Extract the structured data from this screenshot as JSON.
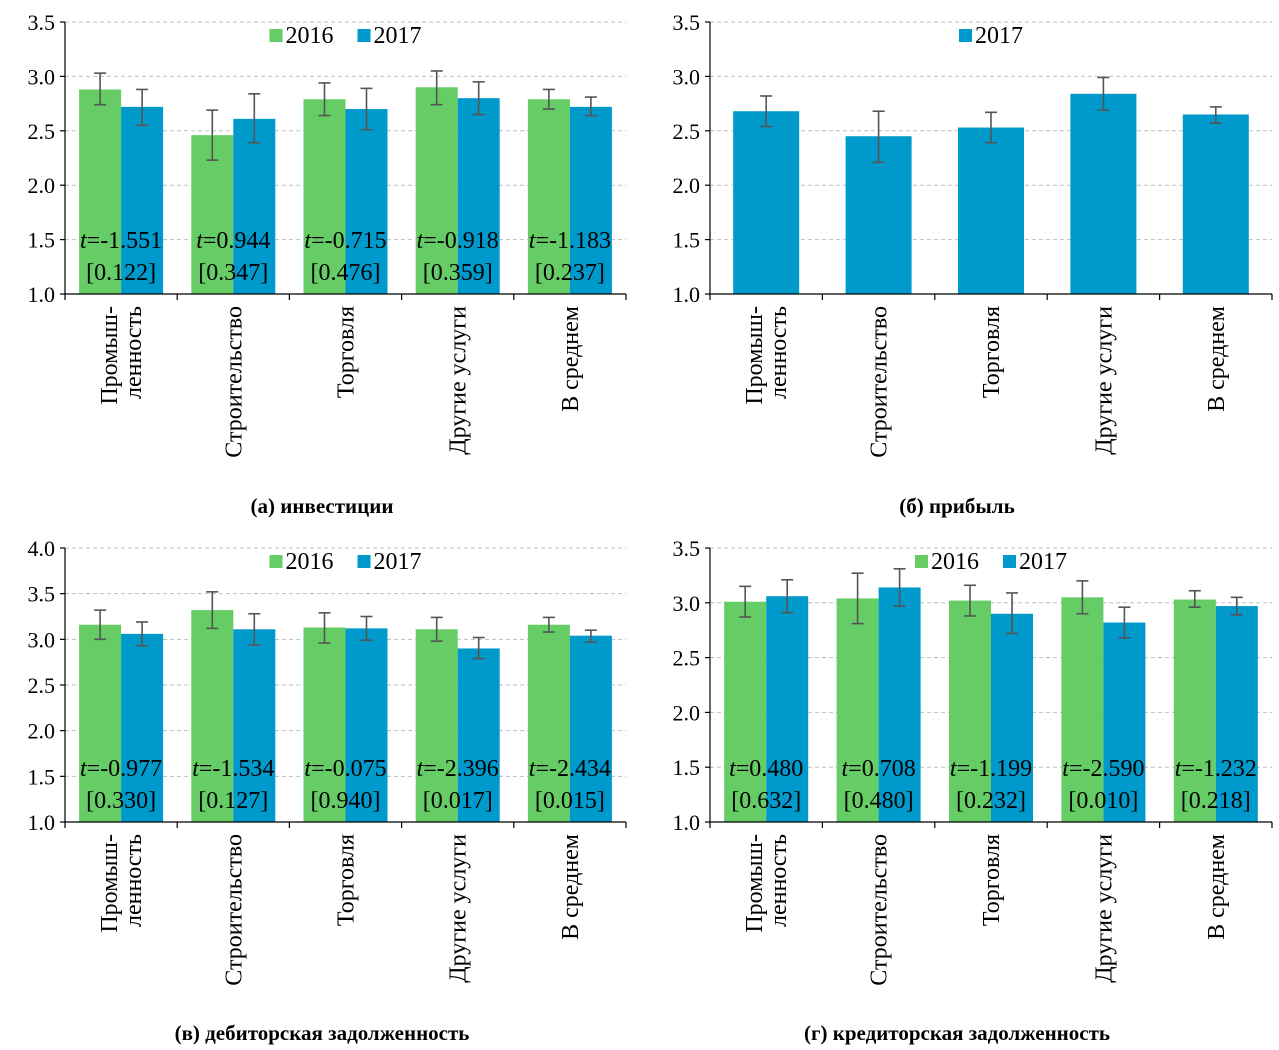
{
  "colors": {
    "s2016": "#66cc66",
    "s2017": "#0099cc",
    "error": "#555555",
    "grid": "#bfbfbf",
    "axis": "#000000"
  },
  "chart_data": [
    {
      "type": "bar",
      "caption": "(а) инвестиции",
      "categories": [
        [
          "Промыш-",
          "ленность"
        ],
        [
          "Строительство"
        ],
        [
          "Торговля"
        ],
        [
          "Другие услуги"
        ],
        [
          "В среднем"
        ]
      ],
      "ylim": [
        1.0,
        3.5
      ],
      "yticks": [
        1.0,
        1.5,
        2.0,
        2.5,
        3.0,
        3.5
      ],
      "grid": true,
      "legend": "top-center",
      "series": [
        {
          "name": "2016",
          "color": "s2016",
          "values": [
            2.88,
            2.46,
            2.79,
            2.9,
            2.79
          ],
          "err_low": [
            2.74,
            2.23,
            2.64,
            2.74,
            2.7
          ],
          "err_high": [
            3.03,
            2.69,
            2.94,
            3.05,
            2.88
          ]
        },
        {
          "name": "2017",
          "color": "s2017",
          "values": [
            2.72,
            2.61,
            2.7,
            2.8,
            2.72
          ],
          "err_low": [
            2.55,
            2.39,
            2.51,
            2.65,
            2.64
          ],
          "err_high": [
            2.88,
            2.84,
            2.89,
            2.95,
            2.81
          ]
        }
      ],
      "annotations": [
        {
          "t": "=-1.551",
          "p": "[0.122]"
        },
        {
          "t": "=0.944",
          "p": "[0.347]"
        },
        {
          "t": "=-0.715",
          "p": "[0.476]"
        },
        {
          "t": "=-0.918",
          "p": "[0.359]"
        },
        {
          "t": "=-1.183",
          "p": "[0.237]"
        }
      ]
    },
    {
      "type": "bar",
      "caption": "(б) прибыль",
      "categories": [
        [
          "Промыш-",
          "ленность"
        ],
        [
          "Строительство"
        ],
        [
          "Торговля"
        ],
        [
          "Другие услуги"
        ],
        [
          "В среднем"
        ]
      ],
      "ylim": [
        1.0,
        3.5
      ],
      "yticks": [
        1.0,
        1.5,
        2.0,
        2.5,
        3.0,
        3.5
      ],
      "grid": true,
      "legend": "top-center",
      "series": [
        {
          "name": "2017",
          "color": "s2017",
          "values": [
            2.68,
            2.45,
            2.53,
            2.84,
            2.65
          ],
          "err_low": [
            2.54,
            2.21,
            2.39,
            2.69,
            2.57
          ],
          "err_high": [
            2.82,
            2.68,
            2.67,
            2.99,
            2.72
          ]
        }
      ],
      "annotations": []
    },
    {
      "type": "bar",
      "caption": "(в) дебиторская задолженность",
      "categories": [
        [
          "Промыш-",
          "ленность"
        ],
        [
          "Строительство"
        ],
        [
          "Торговля"
        ],
        [
          "Другие услуги"
        ],
        [
          "В среднем"
        ]
      ],
      "ylim": [
        1.0,
        4.0
      ],
      "yticks": [
        1.0,
        1.5,
        2.0,
        2.5,
        3.0,
        3.5,
        4.0
      ],
      "grid": true,
      "legend": "top-center",
      "series": [
        {
          "name": "2016",
          "color": "s2016",
          "values": [
            3.16,
            3.32,
            3.13,
            3.11,
            3.16
          ],
          "err_low": [
            3.0,
            3.12,
            2.96,
            2.98,
            3.08
          ],
          "err_high": [
            3.32,
            3.52,
            3.29,
            3.24,
            3.24
          ]
        },
        {
          "name": "2017",
          "color": "s2017",
          "values": [
            3.06,
            3.11,
            3.12,
            2.9,
            3.04
          ],
          "err_low": [
            2.93,
            2.94,
            2.99,
            2.79,
            2.97
          ],
          "err_high": [
            3.19,
            3.28,
            3.25,
            3.02,
            3.1
          ]
        }
      ],
      "annotations": [
        {
          "t": "=-0.977",
          "p": "[0.330]"
        },
        {
          "t": "=-1.534",
          "p": "[0.127]"
        },
        {
          "t": "=-0.075",
          "p": "[0.940]"
        },
        {
          "t": "=-2.396",
          "p": "[0.017]"
        },
        {
          "t": "=-2.434",
          "p": "[0.015]"
        }
      ]
    },
    {
      "type": "bar",
      "caption": "(г) кредиторская задолженность",
      "categories": [
        [
          "Промыш-",
          "ленность"
        ],
        [
          "Строительство"
        ],
        [
          "Торговля"
        ],
        [
          "Другие услуги"
        ],
        [
          "В среднем"
        ]
      ],
      "ylim": [
        1.0,
        3.5
      ],
      "yticks": [
        1.0,
        1.5,
        2.0,
        2.5,
        3.0,
        3.5
      ],
      "grid": true,
      "legend": "top-center",
      "series": [
        {
          "name": "2016",
          "color": "s2016",
          "values": [
            3.01,
            3.04,
            3.02,
            3.05,
            3.03
          ],
          "err_low": [
            2.87,
            2.81,
            2.88,
            2.9,
            2.96
          ],
          "err_high": [
            3.15,
            3.27,
            3.16,
            3.2,
            3.11
          ]
        },
        {
          "name": "2017",
          "color": "s2017",
          "values": [
            3.06,
            3.14,
            2.9,
            2.82,
            2.97
          ],
          "err_low": [
            2.91,
            2.97,
            2.72,
            2.68,
            2.89
          ],
          "err_high": [
            3.21,
            3.31,
            3.09,
            2.96,
            3.05
          ]
        }
      ],
      "annotations": [
        {
          "t": "=0.480",
          "p": "[0.632]"
        },
        {
          "t": "=0.708",
          "p": "[0.480]"
        },
        {
          "t": "=-1.199",
          "p": "[0.232]"
        },
        {
          "t": "=-2.590",
          "p": "[0.010]"
        },
        {
          "t": "=-1.232",
          "p": "[0.218]"
        }
      ]
    }
  ]
}
